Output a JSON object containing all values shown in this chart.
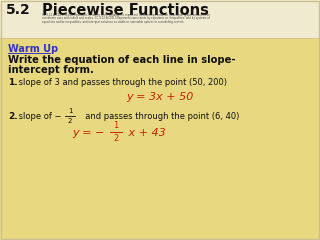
{
  "bg_color": "#e8d880",
  "header_bg": "#f5f0d0",
  "header_number": "5.2",
  "header_title": "Piecewise Functions",
  "header_subtitle_line1": "CC.9-12.A-CED.2 Create equations in two or more variables to represent relationships between quantities; graph equations on",
  "header_subtitle_line2": "coordinate axes with labels and scales. CC.9-12.A.CED.3 Represent constraints by equations or inequalities, and by systems of",
  "header_subtitle_line3": "equations and/or inequalities, and interpret solutions as viable or nonviable options in a modeling context.",
  "warmup_label": "Warm Up",
  "warmup_color": "#3333cc",
  "instruction_line1": "Write the equation of each line in slope-",
  "instruction_line2": "intercept form.",
  "q1_label": "1.",
  "q1_text": " slope of 3 and passes through the point (50, 200)",
  "q1_answer_left": "y = 3x + 50",
  "q2_label": "2.",
  "q2_text_before": " slope of −",
  "q2_text_after": "  and passes through the point (6, 40)",
  "q2_answer_prefix": "y = − ",
  "q2_answer_suffix": " x + 43",
  "answer_color": "#cc2200",
  "text_color": "#111111",
  "border_color": "#d0c878",
  "num_color": "#111111",
  "title_color": "#111111"
}
